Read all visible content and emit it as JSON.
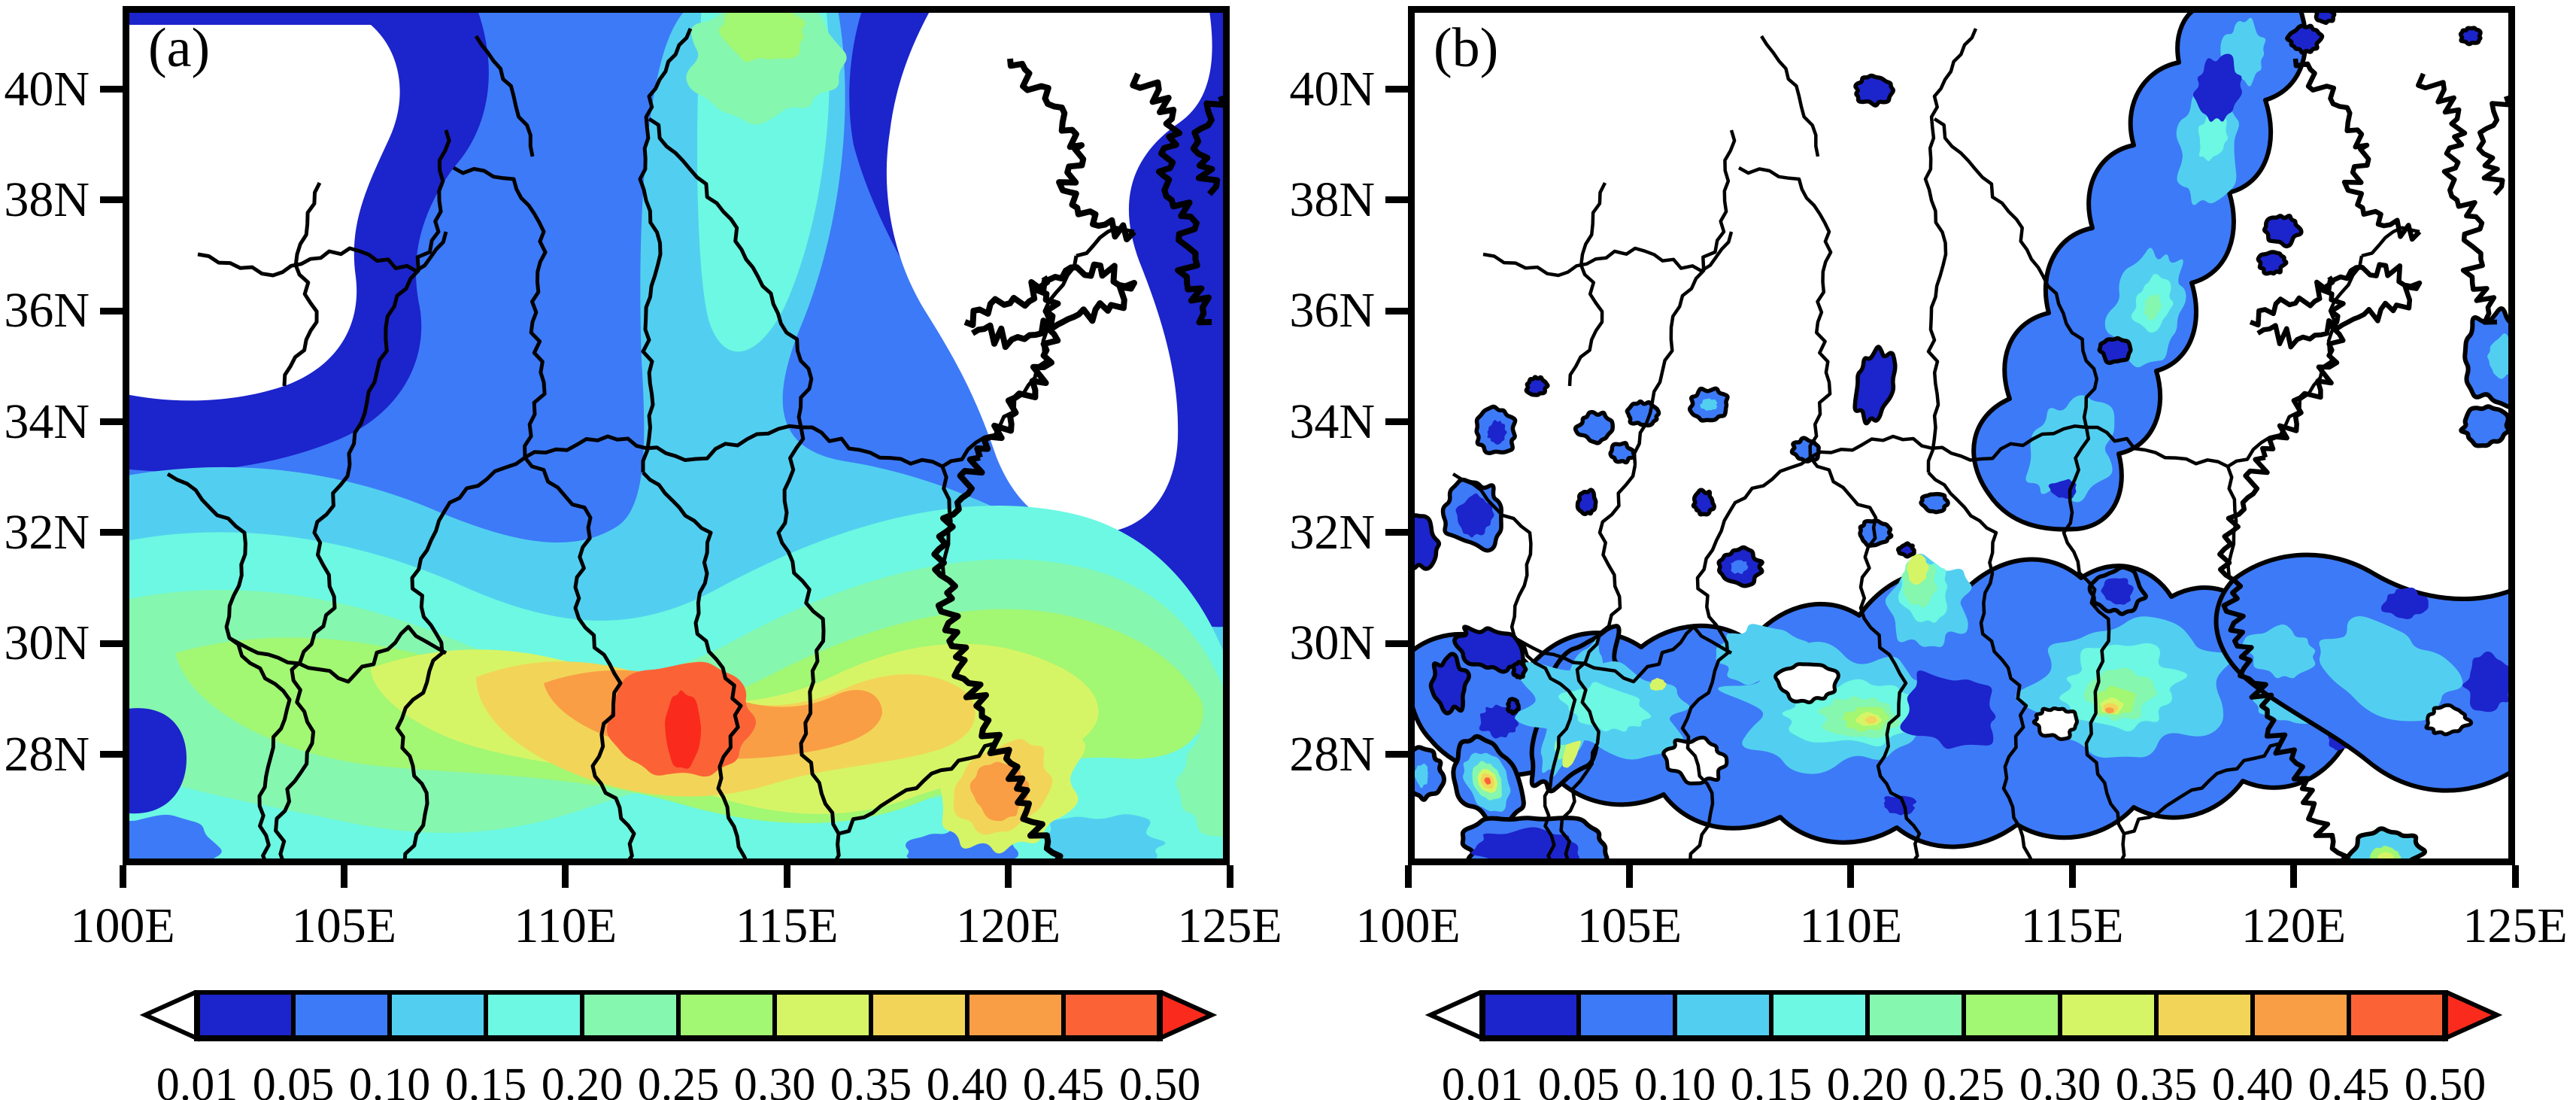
{
  "figure": {
    "panels": [
      {
        "id": "a",
        "label": "(a)"
      },
      {
        "id": "b",
        "label": "(b)"
      }
    ]
  },
  "axes": {
    "lat_tick_labels": [
      "40N",
      "38N",
      "36N",
      "34N",
      "32N",
      "30N",
      "28N"
    ],
    "lat_tick_values": [
      40,
      38,
      36,
      34,
      32,
      30,
      28
    ],
    "lon_tick_labels": [
      "100E",
      "105E",
      "110E",
      "115E",
      "120E",
      "125E"
    ],
    "lon_tick_values": [
      100,
      105,
      110,
      115,
      120,
      125
    ],
    "lat_range": [
      26,
      41.5
    ],
    "lon_range": [
      100,
      125
    ]
  },
  "colorbar": {
    "tick_labels": [
      "0.01",
      "0.05",
      "0.10",
      "0.15",
      "0.20",
      "0.25",
      "0.30",
      "0.35",
      "0.40",
      "0.45",
      "0.50"
    ],
    "levels": [
      0.01,
      0.05,
      0.1,
      0.15,
      0.2,
      0.25,
      0.3,
      0.35,
      0.4,
      0.45,
      0.5
    ],
    "palette": [
      "#ffffff",
      "#1c24cb",
      "#3d7af7",
      "#52cff0",
      "#6cf8e2",
      "#86f7ae",
      "#a2f773",
      "#d6f566",
      "#f2d558",
      "#f99e45",
      "#fb6337",
      "#fa2b1c"
    ],
    "under_color": "#ffffff",
    "over_color": "#fa2b1c"
  },
  "chart_data": [
    {
      "type": "heatmap",
      "panel": "(a)",
      "title": "(a)",
      "x_axis": {
        "tick_labels": [
          "100E",
          "105E",
          "110E",
          "115E",
          "120E",
          "125E"
        ],
        "tick_values": [
          100,
          105,
          110,
          115,
          120,
          125
        ],
        "range": [
          100,
          125
        ],
        "units": "degrees east longitude"
      },
      "y_axis": {
        "tick_labels": [
          "40N",
          "38N",
          "36N",
          "34N",
          "32N",
          "30N",
          "28N"
        ],
        "tick_values": [
          40,
          38,
          36,
          34,
          32,
          30,
          28
        ],
        "range": [
          26,
          41.5
        ],
        "units": "degrees north latitude"
      },
      "contour_levels": [
        0.01,
        0.05,
        0.1,
        0.15,
        0.2,
        0.25,
        0.3,
        0.35,
        0.4,
        0.45,
        0.5
      ],
      "fill_colors": [
        "#ffffff",
        "#1c24cb",
        "#3d7af7",
        "#52cff0",
        "#6cf8e2",
        "#86f7ae",
        "#a2f773",
        "#d6f566",
        "#f2d558",
        "#f99e45",
        "#fb6337",
        "#fa2b1c"
      ],
      "grid": false,
      "legend_position": "horizontal colorbar below panel",
      "style": "smooth filled contours over a map of eastern China; black province boundaries and coastline overlaid; no contour lines between fill bands",
      "pattern": "white (<0.01) over the northwest corner (west of ~108E, north of ~33N) and over the Bohai/Yellow Sea region in the northeast; dark blue 0.01-0.05 rims around the white minima; royal blue 0.05-0.10 across the north; values increase southward through cyan, teal, green and yellow bands; broad maximum belt along 27-30N",
      "maxima": [
        {
          "lon": 112.7,
          "lat": 28.4,
          "value": "> 0.50"
        },
        {
          "lon": 119.8,
          "lat": 27.3,
          "value": "0.40-0.45"
        }
      ],
      "minima": [
        {
          "region": "northwest corner, 100-106E / 33-41.5N",
          "value": "< 0.01"
        },
        {
          "region": "Bohai and Yellow Sea, 117-125E / 31-41.5N",
          "value": "< 0.01"
        }
      ]
    },
    {
      "type": "heatmap",
      "panel": "(b)",
      "title": "(b)",
      "x_axis": {
        "tick_labels": [
          "100E",
          "105E",
          "110E",
          "115E",
          "120E",
          "125E"
        ],
        "tick_values": [
          100,
          105,
          110,
          115,
          120,
          125
        ],
        "range": [
          100,
          125
        ],
        "units": "degrees east longitude"
      },
      "y_axis": {
        "tick_labels": [
          "40N",
          "38N",
          "36N",
          "34N",
          "32N",
          "30N",
          "28N"
        ],
        "tick_values": [
          40,
          38,
          36,
          34,
          32,
          30,
          28
        ],
        "range": [
          26,
          41.5
        ],
        "units": "degrees north latitude"
      },
      "contour_levels": [
        0.01,
        0.05,
        0.1,
        0.15,
        0.2,
        0.25,
        0.3,
        0.35,
        0.4,
        0.45,
        0.5
      ],
      "fill_colors": [
        "#ffffff",
        "#1c24cb",
        "#3d7af7",
        "#52cff0",
        "#6cf8e2",
        "#86f7ae",
        "#a2f773",
        "#d6f566",
        "#f2d558",
        "#f99e45",
        "#fb6337",
        "#fa2b1c"
      ],
      "grid": false,
      "legend_position": "horizontal colorbar below panel",
      "style": "patchy small-scale filled contours; the 0.01 contour is drawn as a heavy black outline around every shaded patch; black province boundaries and coastline overlaid",
      "pattern": "mostly white (<0.01); scattered blue patches of 0.01-0.15; an elongated band arcs along 26-30N from southwest China (~101E) to the southeast coast (~123E) with embedded cyan/green cells of 0.15-0.35; a second band runs northeast from ~113E,33N to ~119E,41.5N; many isolated dark-blue 0.01-0.05 blobs elsewhere",
      "maxima": [
        {
          "lon": 101.8,
          "lat": 27.5,
          "value": "0.40-0.50 (small core)"
        },
        {
          "lon": 115.8,
          "lat": 28.8,
          "value": "0.40-0.45 (small core)"
        },
        {
          "lon": 110.4,
          "lat": 28.6,
          "value": "0.35-0.40 (small core)"
        },
        {
          "lon": 111.5,
          "lat": 31.4,
          "value": "0.30-0.35 (small core)"
        }
      ],
      "minima": [
        {
          "region": "most of the domain away from the bands",
          "value": "< 0.01"
        }
      ]
    }
  ]
}
